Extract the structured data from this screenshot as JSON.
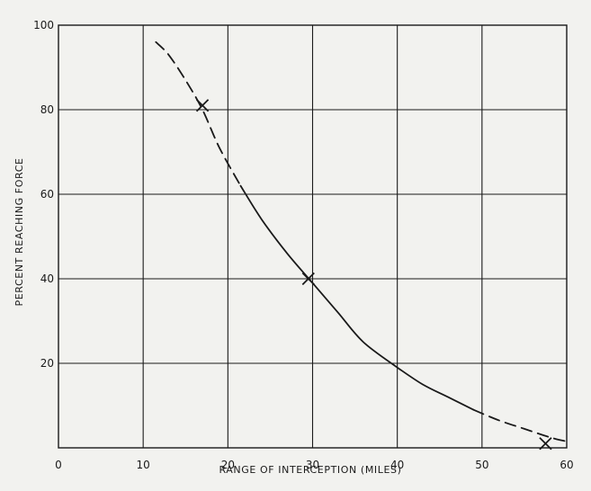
{
  "chart_data": {
    "type": "line",
    "title": "",
    "xlabel": "RANGE OF INTERCEPTION (MILES)",
    "ylabel": "PERCENT REACHING FORCE",
    "xlim": [
      0,
      60
    ],
    "ylim": [
      0,
      100
    ],
    "xticks": [
      "0",
      "10",
      "20",
      "30",
      "40",
      "50",
      "60"
    ],
    "yticks": [
      "20",
      "40",
      "60",
      "80",
      "100"
    ],
    "grid": true,
    "legend": "none",
    "series": [
      {
        "style": "dashed",
        "x": [
          11.5,
          13,
          15,
          17,
          19,
          21.5
        ],
        "y": [
          96,
          93,
          87,
          80,
          71,
          62
        ]
      },
      {
        "style": "solid",
        "x": [
          21.5,
          24,
          27,
          30,
          33,
          36,
          40
        ],
        "y": [
          62,
          54,
          46,
          39,
          32,
          25,
          19
        ]
      },
      {
        "style": "solid",
        "x": [
          40,
          43,
          46,
          49
        ],
        "y": [
          19,
          15,
          12,
          9
        ]
      },
      {
        "style": "dashed",
        "x": [
          49,
          52,
          55,
          58,
          60
        ],
        "y": [
          9,
          6.5,
          4.5,
          2.5,
          1.5
        ]
      }
    ],
    "markers": [
      {
        "symbol": "x",
        "x": 17,
        "y": 81
      },
      {
        "symbol": "x",
        "x": 29.5,
        "y": 40
      },
      {
        "symbol": "x",
        "x": 57.5,
        "y": 1
      }
    ],
    "colors": {
      "background": "#f2f2ef",
      "ink": "#1a1a1a"
    }
  }
}
